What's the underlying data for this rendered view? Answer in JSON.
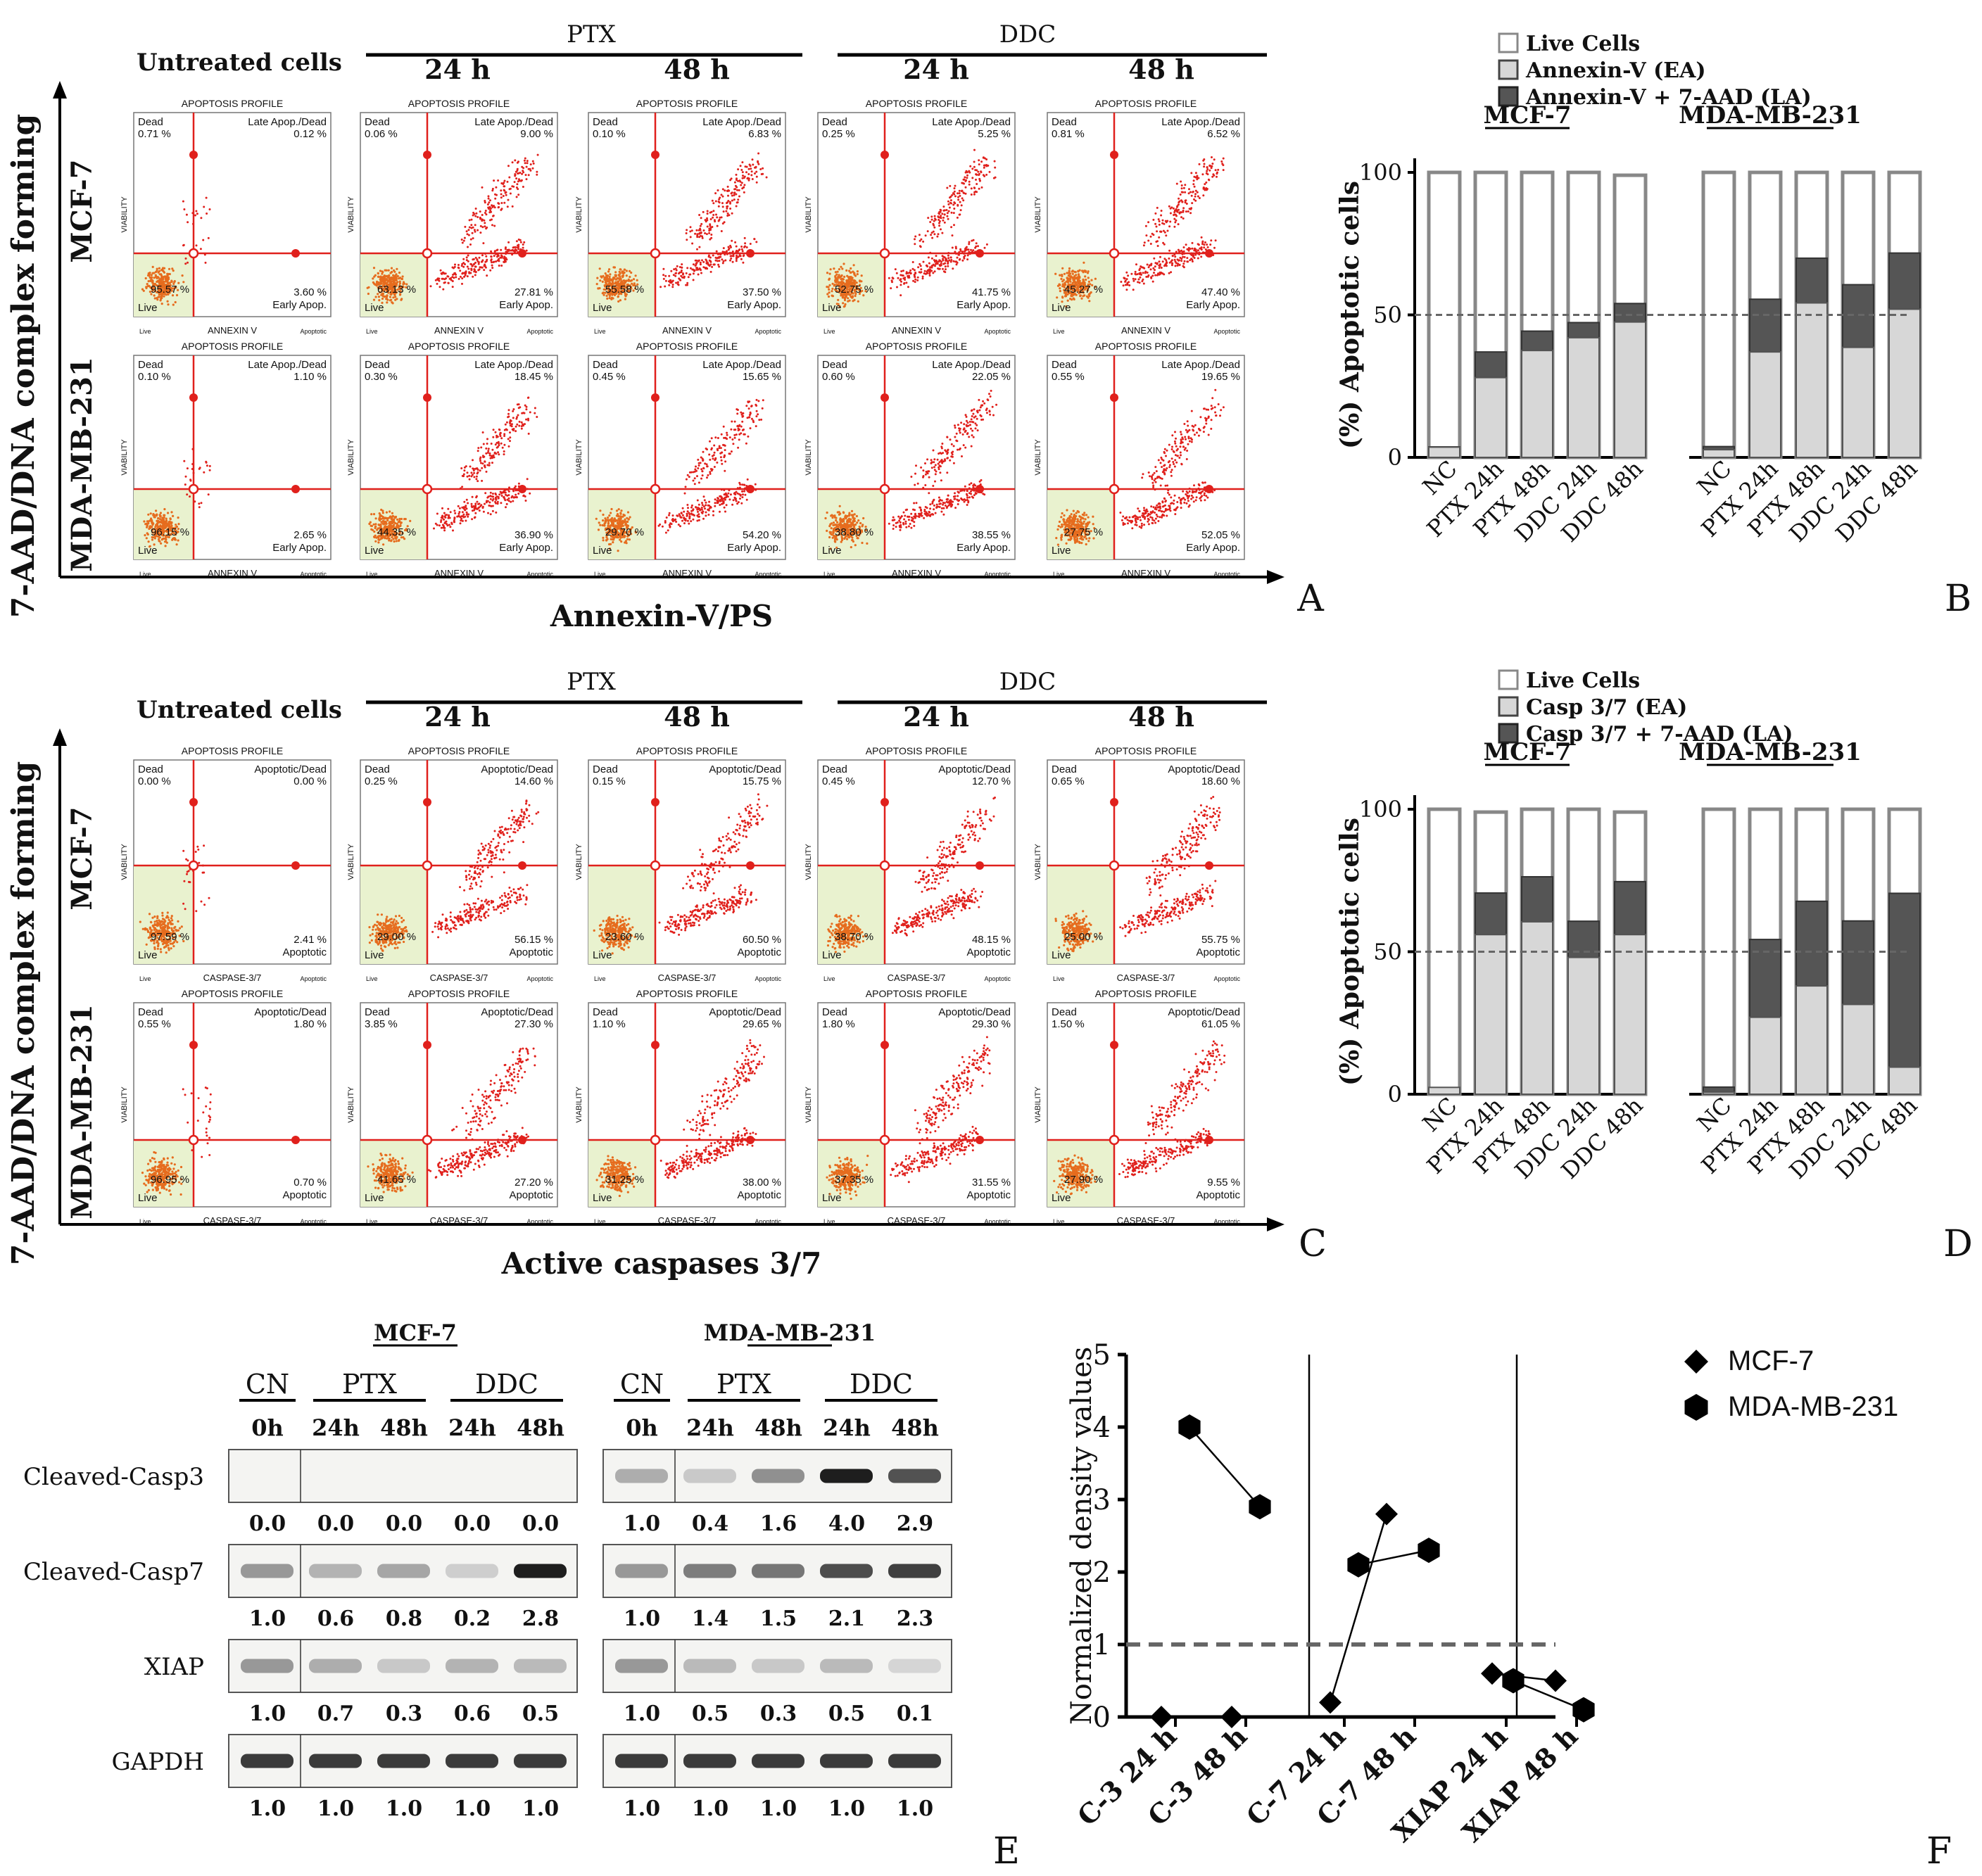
{
  "panel_letters": [
    "A",
    "B",
    "C",
    "D",
    "E",
    "F"
  ],
  "flow_headers": {
    "untreated": "Untreated cells",
    "ptx": "PTX",
    "ddc": "DDC",
    "t24": "24 h",
    "t48": "48 h",
    "row_mcf7": "MCF-7",
    "row_mda": "MDA-MB-231",
    "y_axis": "7-AAD/DNA complex forming",
    "x_axis_A": "Annexin-V/PS",
    "x_axis_C": "Active caspases 3/7",
    "profile_title": "APOPTOSIS PROFILE",
    "viability": "VIABILITY",
    "annexin_label": "ANNEXIN V",
    "caspase_label": "CASPASE-3/7",
    "live_small": "Live",
    "apoptotic_small": "Apoptotic",
    "dead_small": "Dead"
  },
  "panel_A": {
    "quadrant_labels": {
      "tl": "Dead",
      "tr": "Late Apop./Dead",
      "br": "Early Apop.",
      "bl": "Live"
    },
    "plots": [
      {
        "dead": "0.71 %",
        "late": "0.12 %",
        "early": "3.60 %",
        "live": "95.57 %"
      },
      {
        "dead": "0.06 %",
        "late": "9.00 %",
        "early": "27.81 %",
        "live": "63.13 %"
      },
      {
        "dead": "0.10 %",
        "late": "6.83 %",
        "early": "37.50 %",
        "live": "55.58 %"
      },
      {
        "dead": "0.25 %",
        "late": "5.25 %",
        "early": "41.75 %",
        "live": "52.75 %"
      },
      {
        "dead": "0.81 %",
        "late": "6.52 %",
        "early": "47.40 %",
        "live": "45.27 %"
      },
      {
        "dead": "0.10 %",
        "late": "1.10 %",
        "early": "2.65 %",
        "live": "96.15 %"
      },
      {
        "dead": "0.30 %",
        "late": "18.45 %",
        "early": "36.90 %",
        "live": "44.35 %"
      },
      {
        "dead": "0.45 %",
        "late": "15.65 %",
        "early": "54.20 %",
        "live": "29.70 %"
      },
      {
        "dead": "0.60 %",
        "late": "22.05 %",
        "early": "38.55 %",
        "live": "38.80 %"
      },
      {
        "dead": "0.55 %",
        "late": "19.65 %",
        "early": "52.05 %",
        "live": "27.75 %"
      }
    ]
  },
  "panel_C": {
    "quadrant_labels": {
      "tl": "Dead",
      "tr": "Apoptotic/Dead",
      "br": "Apoptotic",
      "bl": "Live"
    },
    "plots": [
      {
        "dead": "0.00 %",
        "late": "0.00 %",
        "early": "2.41 %",
        "live": "97.59 %"
      },
      {
        "dead": "0.25 %",
        "late": "14.60 %",
        "early": "56.15 %",
        "live": "29.00 %"
      },
      {
        "dead": "0.15 %",
        "late": "15.75 %",
        "early": "60.50 %",
        "live": "23.60 %"
      },
      {
        "dead": "0.45 %",
        "late": "12.70 %",
        "early": "48.15 %",
        "live": "38.70 %"
      },
      {
        "dead": "0.65 %",
        "late": "18.60 %",
        "early": "55.75 %",
        "live": "25.00 %"
      },
      {
        "dead": "0.55 %",
        "late": "1.80 %",
        "early": "0.70 %",
        "live": "96.95 %"
      },
      {
        "dead": "3.85 %",
        "late": "27.30 %",
        "early": "27.20 %",
        "live": "41.65 %"
      },
      {
        "dead": "1.10 %",
        "late": "29.65 %",
        "early": "38.00 %",
        "live": "31.25 %"
      },
      {
        "dead": "1.80 %",
        "late": "29.30 %",
        "early": "31.55 %",
        "live": "37.35 %"
      },
      {
        "dead": "1.50 %",
        "late": "61.05 %",
        "early": "9.55 %",
        "live": "27.90 %"
      }
    ]
  },
  "panel_E": {
    "cell_lines": [
      "MCF-7",
      "MDA-MB-231"
    ],
    "groups": [
      "CN",
      "PTX",
      "DDC"
    ],
    "times": [
      "0h",
      "24h",
      "48h",
      "24h",
      "48h"
    ],
    "proteins": [
      "Cleaved-Casp3",
      "Cleaved-Casp7",
      "XIAP",
      "GAPDH"
    ],
    "values": {
      "mcf7": [
        [
          "0.0",
          "0.0",
          "0.0",
          "0.0",
          "0.0"
        ],
        [
          "1.0",
          "0.6",
          "0.8",
          "0.2",
          "2.8"
        ],
        [
          "1.0",
          "0.7",
          "0.3",
          "0.6",
          "0.5"
        ],
        [
          "1.0",
          "1.0",
          "1.0",
          "1.0",
          "1.0"
        ]
      ],
      "mda": [
        [
          "1.0",
          "0.4",
          "1.6",
          "4.0",
          "2.9"
        ],
        [
          "1.0",
          "1.4",
          "1.5",
          "2.1",
          "2.3"
        ],
        [
          "1.0",
          "0.5",
          "0.3",
          "0.5",
          "0.1"
        ],
        [
          "1.0",
          "1.0",
          "1.0",
          "1.0",
          "1.0"
        ]
      ]
    }
  },
  "chart_data": [
    {
      "panel": "B",
      "type": "bar",
      "ylabel": "(%) Apoptotic cells",
      "ylim": [
        0,
        100
      ],
      "yticks": [
        "0",
        "50",
        "100"
      ],
      "reference_line": 50,
      "groups": [
        "MCF-7",
        "MDA-MB-231"
      ],
      "categories": [
        "NC",
        "PTX 24h",
        "PTX 48h",
        "DDC 24h",
        "DDC 48h"
      ],
      "legend": [
        "Live Cells",
        "Annexin-V (EA)",
        "Annexin-V + 7-AAD (LA)"
      ],
      "series": [
        {
          "name": "Annexin-V (EA)",
          "values_mcf7": [
            3.6,
            28,
            37.5,
            42,
            47.5
          ],
          "values_mda": [
            2.7,
            37,
            54.2,
            38.6,
            52
          ]
        },
        {
          "name": "Annexin-V + 7-AAD (LA)",
          "values_mcf7": [
            0.1,
            9,
            6.8,
            5.3,
            6.5
          ],
          "values_mda": [
            1.1,
            18.5,
            15.7,
            22,
            19.7
          ]
        },
        {
          "name": "Live Cells",
          "values_mcf7": [
            100,
            100,
            100,
            100,
            99
          ],
          "values_mda": [
            100,
            100,
            100,
            100,
            100
          ]
        }
      ]
    },
    {
      "panel": "D",
      "type": "bar",
      "ylabel": "(%) Apoptotic cells",
      "ylim": [
        0,
        100
      ],
      "yticks": [
        "0",
        "50",
        "100"
      ],
      "reference_line": 50,
      "groups": [
        "MCF-7",
        "MDA-MB-231"
      ],
      "categories": [
        "NC",
        "PTX 24h",
        "PTX 48h",
        "DDC 24h",
        "DDC 48h"
      ],
      "legend": [
        "Live Cells",
        "Casp 3/7 (EA)",
        "Casp 3/7 + 7-AAD (LA)"
      ],
      "series": [
        {
          "name": "Casp 3/7 (EA)",
          "values_mcf7": [
            2.4,
            56,
            60.5,
            48,
            56
          ],
          "values_mda": [
            0.7,
            27,
            38,
            31.5,
            9.5
          ]
        },
        {
          "name": "Casp 3/7 + 7-AAD (LA)",
          "values_mcf7": [
            0,
            14.6,
            15.8,
            12.7,
            18.6
          ],
          "values_mda": [
            1.8,
            27.3,
            29.7,
            29.3,
            61
          ]
        },
        {
          "name": "Live Cells",
          "values_mcf7": [
            100,
            99,
            100,
            100,
            99
          ],
          "values_mda": [
            100,
            100,
            100,
            100,
            100
          ]
        }
      ]
    },
    {
      "panel": "F",
      "type": "scatter",
      "ylabel": "Normalized density values",
      "ylim": [
        0,
        5
      ],
      "yticks": [
        "0",
        "1",
        "2",
        "3",
        "4",
        "5"
      ],
      "reference_line": 1,
      "categories": [
        "C-3 24 h",
        "C-3 48 h",
        "C-7 24 h",
        "C-7 48 h",
        "XIAP 24 h",
        "XIAP 48 h"
      ],
      "series": [
        {
          "name": "MCF-7",
          "marker": "diamond",
          "points": [
            [
              0.0,
              0.0
            ],
            [
              1.0,
              0.0
            ],
            [
              2.0,
              0.2
            ],
            [
              2.8,
              2.8
            ],
            [
              4.0,
              0.6
            ],
            [
              4.9,
              0.5
            ]
          ]
        },
        {
          "name": "MDA-MB-231",
          "marker": "hexagon",
          "points": [
            [
              0.4,
              4.0
            ],
            [
              1.4,
              2.9
            ],
            [
              2.4,
              2.1
            ],
            [
              3.4,
              2.3
            ],
            [
              4.3,
              0.5
            ],
            [
              5.3,
              0.1
            ]
          ]
        }
      ]
    }
  ]
}
